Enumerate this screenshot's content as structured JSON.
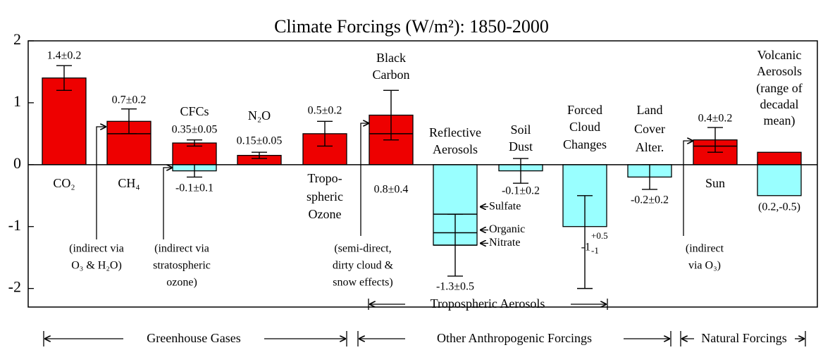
{
  "chart_data": {
    "type": "bar",
    "title": "Climate Forcings (W/m²): 1850-2000",
    "ylim": [
      -2.3,
      2
    ],
    "yticks": [
      -2,
      -1,
      0,
      1,
      2
    ],
    "items": [
      {
        "name": [
          "CO₂"
        ],
        "bars": [
          {
            "value": 1.4,
            "error": 0.2,
            "value_label": "1.4±0.2",
            "color": "#ee0000"
          }
        ]
      },
      {
        "name": [
          "CH₄"
        ],
        "split": 0.5,
        "note": [
          "(indirect via",
          "O₃ & H₂O)"
        ],
        "bars": [
          {
            "value": 0.7,
            "error": 0.2,
            "value_label": "0.7±0.2",
            "color": "#ee0000"
          }
        ]
      },
      {
        "name": [
          "CFCs"
        ],
        "note": [
          "(indirect via",
          "stratospheric",
          "ozone)"
        ],
        "bars": [
          {
            "value": 0.35,
            "error": 0.05,
            "value_label": "0.35±0.05",
            "color": "#ee0000"
          },
          {
            "value": -0.1,
            "error": 0.1,
            "value_label": "-0.1±0.1",
            "color": "#99ffff"
          }
        ]
      },
      {
        "name": [
          "N₂O"
        ],
        "bars": [
          {
            "value": 0.15,
            "error": 0.05,
            "value_label": "0.15±0.05",
            "color": "#ee0000"
          }
        ]
      },
      {
        "name": [
          "Tropo-",
          "spheric",
          "Ozone"
        ],
        "bars": [
          {
            "value": 0.5,
            "error": 0.2,
            "value_label": "0.5±0.2",
            "color": "#ee0000"
          }
        ]
      },
      {
        "name": [
          "Black",
          "Carbon"
        ],
        "split": 0.5,
        "note": [
          "(semi-direct,",
          "dirty cloud &",
          "snow effects)"
        ],
        "bars": [
          {
            "value": 0.8,
            "error": 0.4,
            "value_label": "0.8±0.4",
            "color": "#ee0000"
          }
        ]
      },
      {
        "name": [
          "Reflective",
          "Aerosols"
        ],
        "components": [
          {
            "name": "Sulfate",
            "value": -0.8
          },
          {
            "name": "Organic",
            "value": -0.3
          },
          {
            "name": "Nitrate",
            "value": -0.2
          }
        ],
        "bars": [
          {
            "value": -1.3,
            "error": 0.5,
            "value_label": "-1.3±0.5",
            "color": "#99ffff"
          }
        ]
      },
      {
        "name": [
          "Soil",
          "Dust"
        ],
        "bars": [
          {
            "value": -0.1,
            "error": 0.2,
            "value_label": "-0.1±0.2",
            "color": "#99ffff"
          }
        ]
      },
      {
        "name": [
          "Forced",
          "Cloud",
          "Changes"
        ],
        "bars": [
          {
            "value": -1,
            "error_plus": 0.5,
            "error_minus": 1,
            "value_label": "-1",
            "error_plus_label": "+0.5",
            "error_minus_label": "-1",
            "color": "#99ffff"
          }
        ]
      },
      {
        "name": [
          "Land",
          "Cover",
          "Alter."
        ],
        "bars": [
          {
            "value": -0.2,
            "error": 0.2,
            "value_label": "-0.2±0.2",
            "color": "#99ffff"
          }
        ]
      },
      {
        "name": [
          "Sun"
        ],
        "split": 0.3,
        "note": [
          "(indirect",
          "via O₃)"
        ],
        "bars": [
          {
            "value": 0.4,
            "error": 0.2,
            "value_label": "0.4±0.2",
            "color": "#ee0000"
          }
        ]
      },
      {
        "name": [
          "Volcanic",
          "Aerosols",
          "(range of",
          "decadal",
          "mean)"
        ],
        "value_label": "(0.2,-0.5)",
        "bars": [
          {
            "value": 0.2,
            "color": "#ee0000"
          },
          {
            "value": -0.5,
            "color": "#99ffff"
          }
        ]
      }
    ],
    "groups": [
      "Greenhouse Gases",
      "Other Anthropogenic Forcings",
      "Natural Forcings",
      "Tropospheric Aerosols"
    ]
  }
}
